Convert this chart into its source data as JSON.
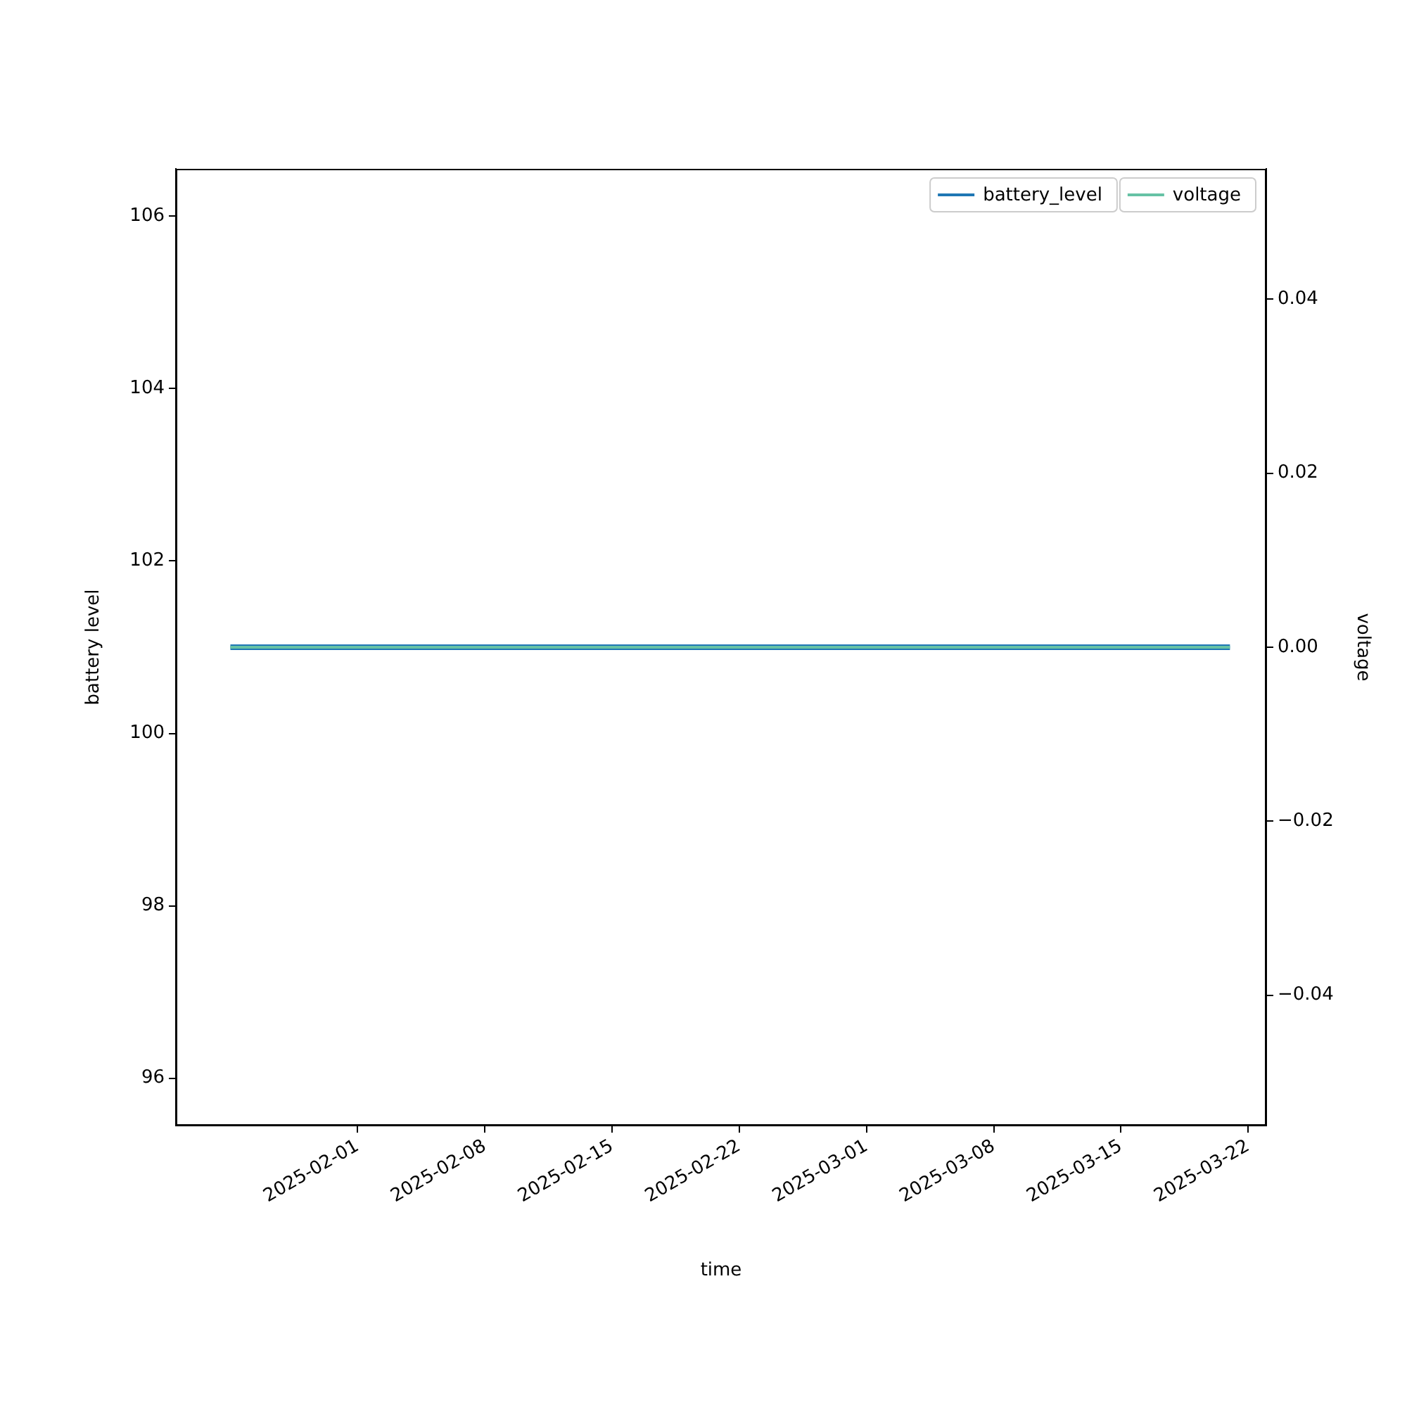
{
  "chart_data": {
    "type": "line",
    "xlabel": "time",
    "ylabel": "battery level",
    "y2label": "voltage",
    "x": [
      "2025-01-25",
      "2025-02-01",
      "2025-02-08",
      "2025-02-15",
      "2025-02-22",
      "2025-03-01",
      "2025-03-08",
      "2025-03-15",
      "2025-03-21"
    ],
    "series": [
      {
        "name": "battery_level",
        "color": "#1f77b4",
        "values": [
          101,
          101,
          101,
          101,
          101,
          101,
          101,
          101,
          101
        ]
      },
      {
        "name": "voltage",
        "color": "#66c2a5",
        "axis": "y2",
        "values": [
          0,
          0,
          0,
          0,
          0,
          0,
          0,
          0,
          0
        ]
      }
    ],
    "xlim": [
      "2025-01-22",
      "2025-03-23"
    ],
    "xticks": [
      "2025-02-01",
      "2025-02-08",
      "2025-02-15",
      "2025-02-22",
      "2025-03-01",
      "2025-03-08",
      "2025-03-15",
      "2025-03-22"
    ],
    "ylim": [
      95.45,
      106.55
    ],
    "yticks": [
      96,
      98,
      100,
      102,
      104,
      106
    ],
    "y2lim": [
      -0.055,
      0.055
    ],
    "y2ticks": [
      {
        "value": -0.04,
        "label": "−0.04"
      },
      {
        "value": -0.02,
        "label": "−0.02"
      },
      {
        "value": 0,
        "label": "0.00"
      },
      {
        "value": 0.02,
        "label": "0.02"
      },
      {
        "value": 0.04,
        "label": "0.04"
      }
    ],
    "legend": "top right",
    "grid": false,
    "marker": "none",
    "line_style": "solid"
  }
}
